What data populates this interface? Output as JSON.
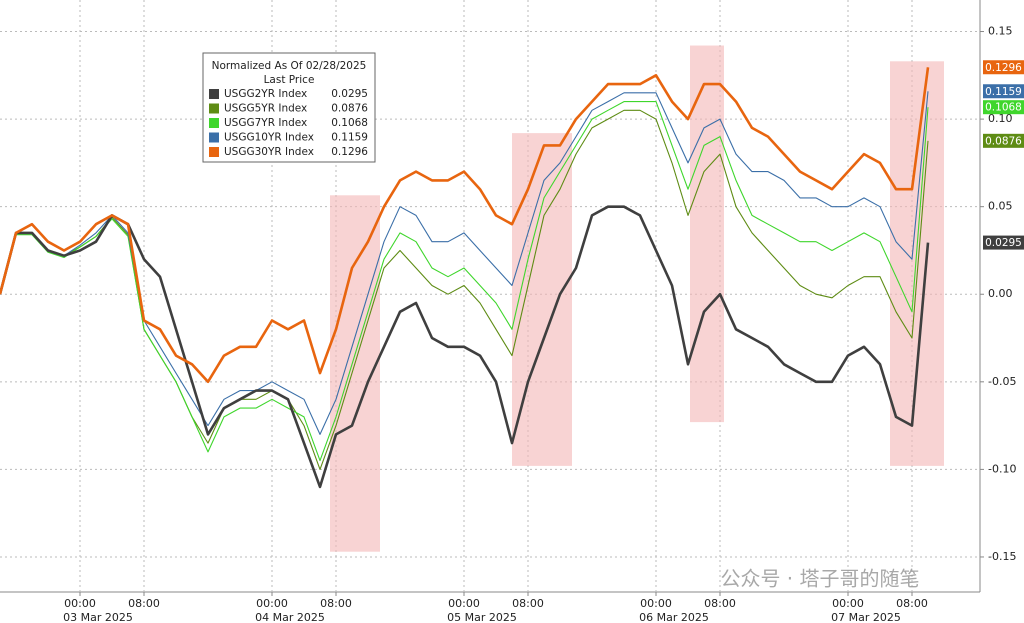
{
  "chart_data": {
    "type": "line",
    "legend": {
      "title": "Normalized As Of 02/28/2025",
      "subtitle": "Last Price"
    },
    "watermark": "公众号 · 塔子哥的随笔",
    "xlim": [
      "2025-03-02 14:00",
      "2025-03-07 16:30"
    ],
    "ylim": [
      -0.17,
      0.168
    ],
    "yticks": [
      0.15,
      {
        "value": 0.1,
        "label": "0.10"
      },
      0.05,
      {
        "value": 0,
        "label": "0.00"
      },
      -0.05,
      {
        "value": -0.1,
        "label": "-0.10"
      },
      -0.15
    ],
    "xticks": [
      {
        "value": "2025-03-03 00:00",
        "label": "00:00"
      },
      {
        "value": "2025-03-03 08:00",
        "label": "08:00"
      },
      {
        "value": "2025-03-04 00:00",
        "label": "00:00"
      },
      {
        "value": "2025-03-04 08:00",
        "label": "08:00"
      },
      {
        "value": "2025-03-05 00:00",
        "label": "00:00"
      },
      {
        "value": "2025-03-05 08:00",
        "label": "08:00"
      },
      {
        "value": "2025-03-06 00:00",
        "label": "00:00"
      },
      {
        "value": "2025-03-06 08:00",
        "label": "08:00"
      },
      {
        "value": "2025-03-07 00:00",
        "label": "00:00"
      },
      {
        "value": "2025-03-07 08:00",
        "label": "08:00"
      }
    ],
    "date_labels": [
      {
        "value": "2025-03-03 00:00",
        "label": "03 Mar 2025"
      },
      {
        "value": "2025-03-04 00:00",
        "label": "04 Mar 2025"
      },
      {
        "value": "2025-03-05 00:00",
        "label": "05 Mar 2025"
      },
      {
        "value": "2025-03-06 00:00",
        "label": "06 Mar 2025"
      },
      {
        "value": "2025-03-07 00:00",
        "label": "07 Mar 2025"
      }
    ],
    "grid": true,
    "highlights": [
      {
        "x": [
          "2025-03-04 07:15",
          "2025-03-04 13:30"
        ],
        "y": [
          -0.147,
          0.0565
        ]
      },
      {
        "x": [
          "2025-03-05 06:00",
          "2025-03-05 13:30"
        ],
        "y": [
          -0.098,
          0.092
        ]
      },
      {
        "x": [
          "2025-03-06 04:15",
          "2025-03-06 08:30"
        ],
        "y": [
          -0.073,
          0.142
        ]
      },
      {
        "x": [
          "2025-03-07 05:15",
          "2025-03-07 12:00"
        ],
        "y": [
          -0.098,
          0.133
        ]
      }
    ],
    "x": [
      "2025-03-02 14:00",
      "2025-03-02 16:00",
      "2025-03-02 18:00",
      "2025-03-02 20:00",
      "2025-03-02 22:00",
      "2025-03-03 00:00",
      "2025-03-03 02:00",
      "2025-03-03 04:00",
      "2025-03-03 06:00",
      "2025-03-03 08:00",
      "2025-03-03 10:00",
      "2025-03-03 12:00",
      "2025-03-03 14:00",
      "2025-03-03 16:00",
      "2025-03-03 18:00",
      "2025-03-03 20:00",
      "2025-03-03 22:00",
      "2025-03-04 00:00",
      "2025-03-04 02:00",
      "2025-03-04 04:00",
      "2025-03-04 06:00",
      "2025-03-04 08:00",
      "2025-03-04 10:00",
      "2025-03-04 12:00",
      "2025-03-04 14:00",
      "2025-03-04 16:00",
      "2025-03-04 18:00",
      "2025-03-04 20:00",
      "2025-03-04 22:00",
      "2025-03-05 00:00",
      "2025-03-05 02:00",
      "2025-03-05 04:00",
      "2025-03-05 06:00",
      "2025-03-05 08:00",
      "2025-03-05 10:00",
      "2025-03-05 12:00",
      "2025-03-05 14:00",
      "2025-03-05 16:00",
      "2025-03-05 18:00",
      "2025-03-05 20:00",
      "2025-03-05 22:00",
      "2025-03-06 00:00",
      "2025-03-06 02:00",
      "2025-03-06 04:00",
      "2025-03-06 06:00",
      "2025-03-06 08:00",
      "2025-03-06 10:00",
      "2025-03-06 12:00",
      "2025-03-06 14:00",
      "2025-03-06 16:00",
      "2025-03-06 18:00",
      "2025-03-06 20:00",
      "2025-03-06 22:00",
      "2025-03-07 00:00",
      "2025-03-07 02:00",
      "2025-03-07 04:00",
      "2025-03-07 06:00",
      "2025-03-07 08:00",
      "2025-03-07 10:00"
    ],
    "series": [
      {
        "name": "USGG2YR Index",
        "color": "#3f3f3f",
        "last": 0.0295,
        "values": [
          0,
          0.035,
          0.035,
          0.025,
          0.022,
          0.025,
          0.03,
          0.045,
          0.04,
          0.02,
          0.01,
          -0.02,
          -0.05,
          -0.08,
          -0.065,
          -0.06,
          -0.055,
          -0.055,
          -0.06,
          -0.085,
          -0.11,
          -0.08,
          -0.075,
          -0.05,
          -0.03,
          -0.01,
          -0.005,
          -0.025,
          -0.03,
          -0.03,
          -0.035,
          -0.05,
          -0.085,
          -0.05,
          -0.025,
          0,
          0.015,
          0.045,
          0.05,
          0.05,
          0.045,
          0.025,
          0.005,
          -0.04,
          -0.01,
          0,
          -0.02,
          -0.025,
          -0.03,
          -0.04,
          -0.045,
          -0.05,
          -0.05,
          -0.035,
          -0.03,
          -0.04,
          -0.07,
          -0.075,
          0.0295
        ]
      },
      {
        "name": "USGG5YR Index",
        "color": "#5e8c14",
        "last": 0.0876,
        "values": [
          0,
          0.035,
          0.035,
          0.025,
          0.022,
          0.027,
          0.033,
          0.044,
          0.034,
          -0.02,
          -0.035,
          -0.05,
          -0.07,
          -0.085,
          -0.065,
          -0.06,
          -0.06,
          -0.055,
          -0.06,
          -0.075,
          -0.1,
          -0.075,
          -0.045,
          -0.015,
          0.015,
          0.025,
          0.015,
          0.005,
          0,
          0.005,
          -0.005,
          -0.02,
          -0.035,
          0.005,
          0.045,
          0.06,
          0.08,
          0.095,
          0.1,
          0.105,
          0.105,
          0.1,
          0.075,
          0.045,
          0.07,
          0.08,
          0.05,
          0.035,
          0.025,
          0.015,
          0.005,
          0,
          -0.002,
          0.005,
          0.01,
          0.01,
          -0.01,
          -0.025,
          0.0876
        ]
      },
      {
        "name": "USGG7YR Index",
        "color": "#3fd62c",
        "last": 0.1068,
        "values": [
          0,
          0.034,
          0.034,
          0.024,
          0.021,
          0.027,
          0.033,
          0.043,
          0.033,
          -0.02,
          -0.035,
          -0.05,
          -0.07,
          -0.09,
          -0.07,
          -0.065,
          -0.065,
          -0.06,
          -0.065,
          -0.07,
          -0.095,
          -0.07,
          -0.04,
          -0.01,
          0.02,
          0.035,
          0.03,
          0.015,
          0.01,
          0.015,
          0.005,
          -0.005,
          -0.02,
          0.02,
          0.055,
          0.07,
          0.085,
          0.1,
          0.105,
          0.11,
          0.11,
          0.11,
          0.085,
          0.06,
          0.085,
          0.09,
          0.065,
          0.045,
          0.04,
          0.035,
          0.03,
          0.03,
          0.025,
          0.03,
          0.035,
          0.03,
          0.01,
          -0.01,
          0.1068
        ]
      },
      {
        "name": "USGG10YR Index",
        "color": "#3b6fa8",
        "last": 0.1159,
        "values": [
          0,
          0.035,
          0.035,
          0.025,
          0.022,
          0.028,
          0.035,
          0.045,
          0.035,
          -0.015,
          -0.03,
          -0.045,
          -0.06,
          -0.075,
          -0.06,
          -0.055,
          -0.055,
          -0.05,
          -0.055,
          -0.06,
          -0.08,
          -0.06,
          -0.03,
          0,
          0.03,
          0.05,
          0.045,
          0.03,
          0.03,
          0.035,
          0.025,
          0.015,
          0.005,
          0.035,
          0.065,
          0.075,
          0.09,
          0.105,
          0.11,
          0.115,
          0.115,
          0.115,
          0.095,
          0.075,
          0.095,
          0.1,
          0.08,
          0.07,
          0.07,
          0.065,
          0.055,
          0.055,
          0.05,
          0.05,
          0.055,
          0.05,
          0.03,
          0.02,
          0.1159
        ]
      },
      {
        "name": "USGG30YR Index",
        "color": "#e8650f",
        "last": 0.1296,
        "values": [
          0,
          0.035,
          0.04,
          0.03,
          0.025,
          0.03,
          0.04,
          0.045,
          0.04,
          -0.015,
          -0.02,
          -0.035,
          -0.04,
          -0.05,
          -0.035,
          -0.03,
          -0.03,
          -0.015,
          -0.02,
          -0.015,
          -0.045,
          -0.02,
          0.015,
          0.03,
          0.05,
          0.065,
          0.07,
          0.065,
          0.065,
          0.07,
          0.06,
          0.045,
          0.04,
          0.06,
          0.085,
          0.085,
          0.1,
          0.11,
          0.12,
          0.12,
          0.12,
          0.125,
          0.11,
          0.1,
          0.12,
          0.12,
          0.11,
          0.095,
          0.09,
          0.08,
          0.07,
          0.065,
          0.06,
          0.07,
          0.08,
          0.075,
          0.06,
          0.06,
          0.1296
        ]
      }
    ]
  }
}
